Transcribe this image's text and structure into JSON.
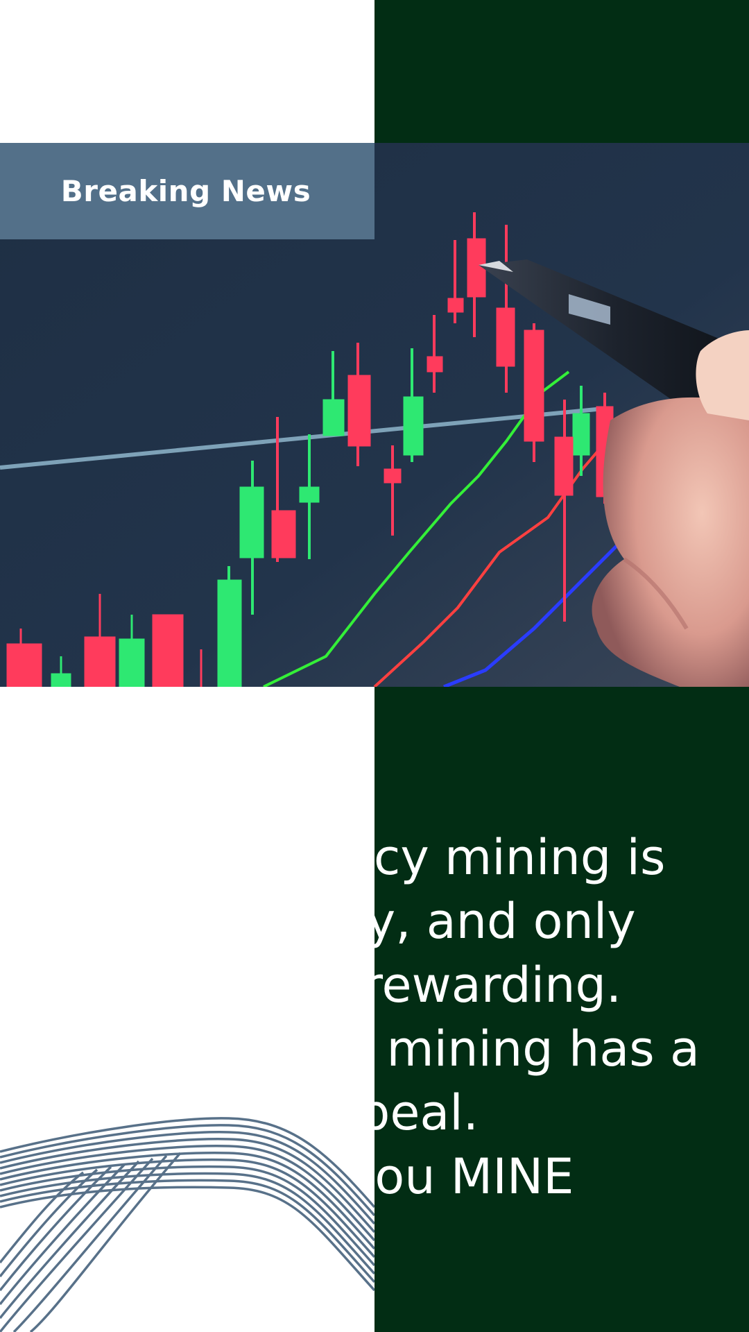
{
  "banner": {
    "label": "Breaking News"
  },
  "article": {
    "paragraph": "Cryptocurrency mining is painful, costly, and only sporadically rewarding. Nonetheless, mining has a magnetic appeal.",
    "tagline": "Here's How you MINE"
  },
  "colors": {
    "green_panel": "#022d14",
    "banner_bg": "#537089",
    "photo_bg": "#24364c",
    "wave_stroke": "#587189",
    "candle_up": "#2ee872",
    "candle_down": "#ff3b5c"
  },
  "icons": {
    "photo": "candlestick-chart-photo",
    "decoration": "wave-lines-icon"
  }
}
